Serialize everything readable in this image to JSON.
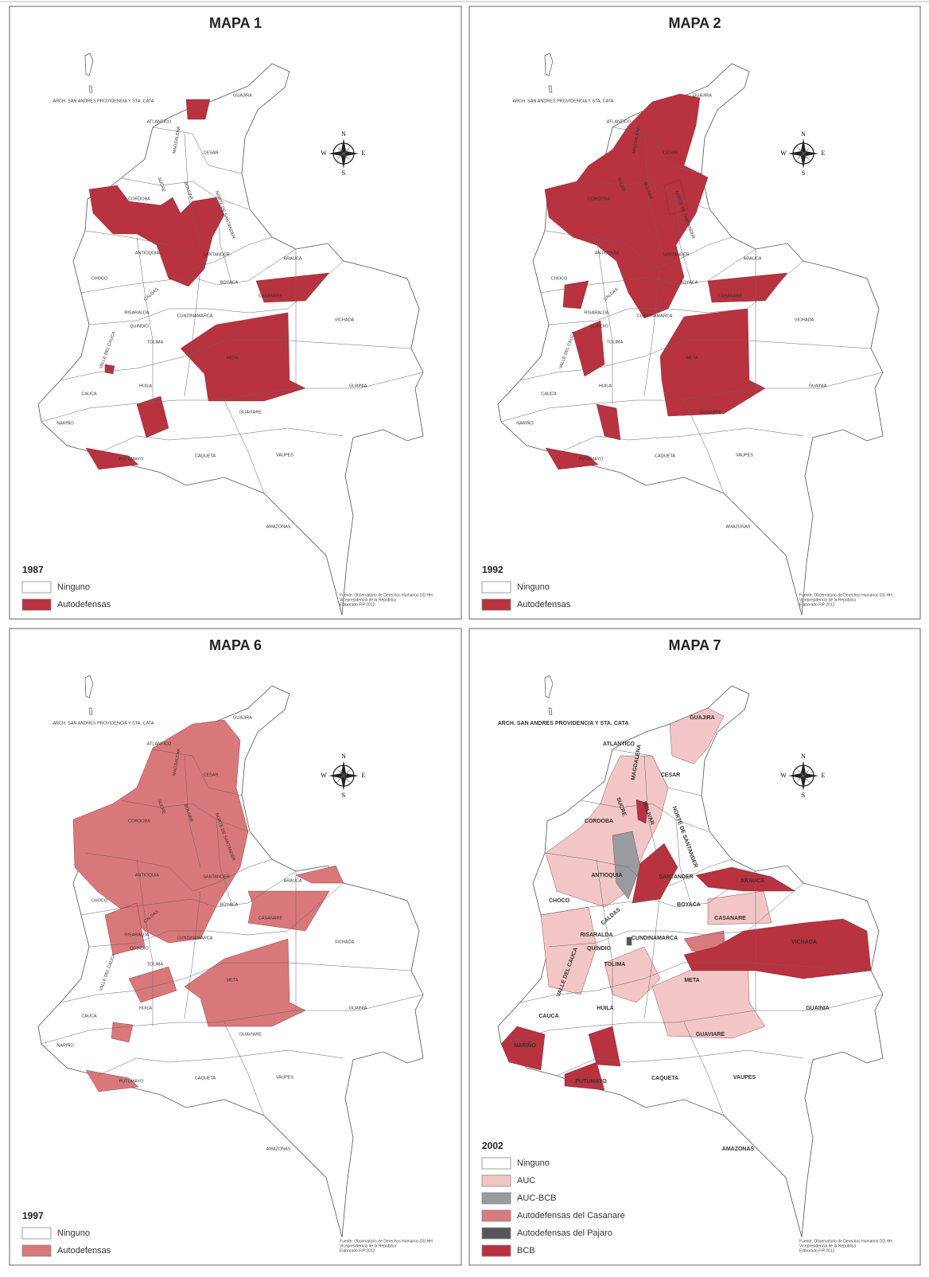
{
  "compass": {
    "n": "N",
    "s": "S",
    "e": "E",
    "w": "W"
  },
  "maps": [
    {
      "title": "MAPA 1",
      "year": "1987",
      "bold_labels": false,
      "legend": [
        {
          "label": "Ninguno",
          "color": "#ffffff"
        },
        {
          "label": "Autodefensas",
          "color": "#b8323f"
        }
      ],
      "source": [
        "Fuente: Observatorio de Derechos Humanos DD.HH.",
        "Vicepresidencia de la República",
        "Elaborado FIP 2012"
      ],
      "regions": [
        "ARCH. SAN ANDRES PROVIDENCIA Y STA. CATA",
        "GUAJIRA",
        "ATLANTICO",
        "MAGDALENA",
        "CESAR",
        "SUCRE",
        "BOLIVAR",
        "NORTE DE SANTANDER",
        "CORDOBA",
        "ANTIOQUIA",
        "SANTANDER",
        "ARAUCA",
        "CHOCO",
        "BOYACA",
        "CASANARE",
        "CALDAS",
        "RISARALDA",
        "QUINDIO",
        "CUNDINAMARCA",
        "VICHADA",
        "VALLE DEL CAUCA",
        "TOLIMA",
        "META",
        "HUILA",
        "CAUCA",
        "GUAINIA",
        "GUAVIARE",
        "NARIÑO",
        "PUTUMAYO",
        "CAQUETA",
        "VAUPES",
        "AMAZONAS"
      ]
    },
    {
      "title": "MAPA 2",
      "year": "1992",
      "bold_labels": false,
      "legend": [
        {
          "label": "Ninguno",
          "color": "#ffffff"
        },
        {
          "label": "Autodefensas",
          "color": "#b8323f"
        }
      ],
      "source": [
        "Fuente: Observatorio de Derechos Humanos DD.HH.",
        "Vicepresidencia de la República",
        "Elaborado FIP 2012"
      ],
      "regions": [
        "ARCH. SAN ANDRES PROVIDENCIA Y STA. CATA",
        "GUAJIRA",
        "ATLANTICO",
        "MAGDALENA",
        "CESAR",
        "SUCRE",
        "BOLIVAR",
        "NORTE DE SANTANDER",
        "CORDOBA",
        "ANTIOQUIA",
        "SANTANDER",
        "ARAUCA",
        "CHOCO",
        "BOYACA",
        "CASANARE",
        "CALDAS",
        "RISARALDA",
        "QUINDIO",
        "CUNDINAMARCA",
        "VICHADA",
        "VALLE DEL CAUCA",
        "TOLIMA",
        "META",
        "HUILA",
        "CAUCA",
        "GUAINIA",
        "GUAVIARE",
        "NARIÑO",
        "PUTUMAYO",
        "CAQUETA",
        "VAUPES",
        "AMAZONAS"
      ]
    },
    {
      "title": "MAPA 6",
      "year": "1997",
      "bold_labels": false,
      "legend": [
        {
          "label": "Ninguno",
          "color": "#ffffff"
        },
        {
          "label": "Autodefensas",
          "color": "#d9787b"
        }
      ],
      "source": [
        "Fuente: Observatorio de Derechos Humanos DD.HH.",
        "Vicepresidencia de la República",
        "Elaborado FIP 2012"
      ],
      "regions": [
        "ARCH. SAN ANDRES PROVIDENCIA Y STA. CATA",
        "GUAJIRA",
        "ATLANTICO",
        "MAGDALENA",
        "CESAR",
        "SUCRE",
        "BOLIVAR",
        "NORTE DE SANTANDER",
        "CORDOBA",
        "ANTIOQUIA",
        "SANTANDER",
        "ARAUCA",
        "CHOCO",
        "BOYACA",
        "CASANARE",
        "CALDAS",
        "RISARALDA",
        "QUINDIO",
        "CUNDINAMARCA",
        "VICHADA",
        "VALLE DEL CAUCA",
        "TOLIMA",
        "META",
        "HUILA",
        "CAUCA",
        "GUAINIA",
        "GUAVIARE",
        "NARIÑO",
        "PUTUMAYO",
        "CAQUETA",
        "VAUPES",
        "AMAZONAS"
      ]
    },
    {
      "title": "MAPA 7",
      "year": "2002",
      "bold_labels": true,
      "legend": [
        {
          "label": "Ninguno",
          "color": "#ffffff"
        },
        {
          "label": "AUC",
          "color": "#f2c6c6"
        },
        {
          "label": "AUC-BCB",
          "color": "#9a9b9f"
        },
        {
          "label": "Autodefensas del Casanare",
          "color": "#d97b7e"
        },
        {
          "label": "Autodefensas del Pajaro",
          "color": "#55555c"
        },
        {
          "label": "BCB",
          "color": "#b8323f"
        }
      ],
      "source": [
        "Fuente: Observatorio de Derechos Humanos DD.HH.",
        "Vicepresidencia de la República",
        "Elaborado FIP 2012"
      ],
      "regions": [
        "ARCH. SAN ANDRES PROVIDENCIA Y STA. CATA",
        "GUAJIRA",
        "ATLANTICO",
        "MAGDALENA",
        "CESAR",
        "SUCRE",
        "BOLIVAR",
        "NORTE DE SANTANDER",
        "CORDOBA",
        "ANTIOQUIA",
        "SANTANDER",
        "ARAUCA",
        "CHOCO",
        "BOYACA",
        "CASANARE",
        "CALDAS",
        "RISARALDA",
        "QUINDIO",
        "CUNDINAMARCA",
        "VICHADA",
        "VALLE DEL CAUCA",
        "TOLIMA",
        "META",
        "HUILA",
        "CAUCA",
        "GUAINIA",
        "GUAVIARE",
        "NARIÑO",
        "PUTUMAYO",
        "CAQUETA",
        "VAUPES",
        "AMAZONAS"
      ]
    }
  ]
}
